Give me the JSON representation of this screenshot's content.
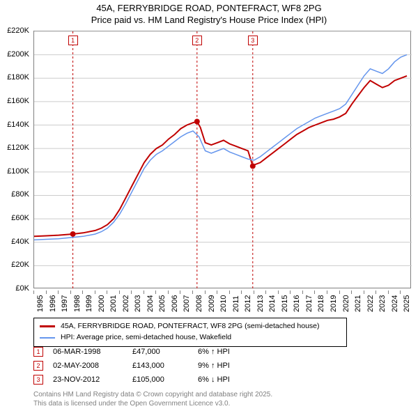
{
  "title_line1": "45A, FERRYBRIDGE ROAD, PONTEFRACT, WF8 2PG",
  "title_line2": "Price paid vs. HM Land Registry's House Price Index (HPI)",
  "chart": {
    "type": "line",
    "background_color": "#ffffff",
    "grid_color": "#cccccc",
    "border_color": "#808080",
    "x_start_year": 1995,
    "x_end_year": 2025.9,
    "y_min": 0,
    "y_max": 220000,
    "y_tick_step": 20000,
    "y_tick_labels": [
      "£0K",
      "£20K",
      "£40K",
      "£60K",
      "£80K",
      "£100K",
      "£120K",
      "£140K",
      "£160K",
      "£180K",
      "£200K",
      "£220K"
    ],
    "x_tick_years": [
      1995,
      1996,
      1997,
      1998,
      1999,
      2000,
      2001,
      2002,
      2003,
      2004,
      2005,
      2006,
      2007,
      2008,
      2009,
      2010,
      2011,
      2012,
      2013,
      2014,
      2015,
      2016,
      2017,
      2018,
      2019,
      2020,
      2021,
      2022,
      2023,
      2024,
      2025
    ],
    "series": [
      {
        "name": "price-paid-series",
        "label": "45A, FERRYBRIDGE ROAD, PONTEFRACT, WF8 2PG (semi-detached house)",
        "color": "#c00000",
        "line_width": 2,
        "points": [
          [
            1995.0,
            45000
          ],
          [
            1996.0,
            45500
          ],
          [
            1997.0,
            46000
          ],
          [
            1998.17,
            47000
          ],
          [
            1999.0,
            48000
          ],
          [
            2000.0,
            50000
          ],
          [
            2000.5,
            52000
          ],
          [
            2001.0,
            55000
          ],
          [
            2001.5,
            60000
          ],
          [
            2002.0,
            68000
          ],
          [
            2002.5,
            78000
          ],
          [
            2003.0,
            88000
          ],
          [
            2003.5,
            98000
          ],
          [
            2004.0,
            108000
          ],
          [
            2004.5,
            115000
          ],
          [
            2005.0,
            120000
          ],
          [
            2005.5,
            123000
          ],
          [
            2006.0,
            128000
          ],
          [
            2006.5,
            132000
          ],
          [
            2007.0,
            137000
          ],
          [
            2007.5,
            140000
          ],
          [
            2008.0,
            142000
          ],
          [
            2008.33,
            143000
          ],
          [
            2008.6,
            138000
          ],
          [
            2009.0,
            125000
          ],
          [
            2009.5,
            123000
          ],
          [
            2010.0,
            125000
          ],
          [
            2010.5,
            127000
          ],
          [
            2011.0,
            124000
          ],
          [
            2011.5,
            122000
          ],
          [
            2012.0,
            120000
          ],
          [
            2012.5,
            118000
          ],
          [
            2012.89,
            105000
          ],
          [
            2013.0,
            106000
          ],
          [
            2013.5,
            108000
          ],
          [
            2014.0,
            112000
          ],
          [
            2014.5,
            116000
          ],
          [
            2015.0,
            120000
          ],
          [
            2015.5,
            124000
          ],
          [
            2016.0,
            128000
          ],
          [
            2016.5,
            132000
          ],
          [
            2017.0,
            135000
          ],
          [
            2017.5,
            138000
          ],
          [
            2018.0,
            140000
          ],
          [
            2018.5,
            142000
          ],
          [
            2019.0,
            144000
          ],
          [
            2019.5,
            145000
          ],
          [
            2020.0,
            147000
          ],
          [
            2020.5,
            150000
          ],
          [
            2021.0,
            158000
          ],
          [
            2021.5,
            165000
          ],
          [
            2022.0,
            172000
          ],
          [
            2022.5,
            178000
          ],
          [
            2023.0,
            175000
          ],
          [
            2023.5,
            172000
          ],
          [
            2024.0,
            174000
          ],
          [
            2024.5,
            178000
          ],
          [
            2025.0,
            180000
          ],
          [
            2025.5,
            182000
          ]
        ]
      },
      {
        "name": "hpi-series",
        "label": "HPI: Average price, semi-detached house, Wakefield",
        "color": "#6495ed",
        "line_width": 1.5,
        "points": [
          [
            1995.0,
            42000
          ],
          [
            1996.0,
            42500
          ],
          [
            1997.0,
            43000
          ],
          [
            1998.0,
            44000
          ],
          [
            1999.0,
            45000
          ],
          [
            2000.0,
            47000
          ],
          [
            2000.5,
            49000
          ],
          [
            2001.0,
            52000
          ],
          [
            2001.5,
            57000
          ],
          [
            2002.0,
            64000
          ],
          [
            2002.5,
            73000
          ],
          [
            2003.0,
            83000
          ],
          [
            2003.5,
            93000
          ],
          [
            2004.0,
            103000
          ],
          [
            2004.5,
            110000
          ],
          [
            2005.0,
            115000
          ],
          [
            2005.5,
            118000
          ],
          [
            2006.0,
            122000
          ],
          [
            2006.5,
            126000
          ],
          [
            2007.0,
            130000
          ],
          [
            2007.5,
            133000
          ],
          [
            2008.0,
            135000
          ],
          [
            2008.5,
            130000
          ],
          [
            2009.0,
            118000
          ],
          [
            2009.5,
            116000
          ],
          [
            2010.0,
            118000
          ],
          [
            2010.5,
            120000
          ],
          [
            2011.0,
            117000
          ],
          [
            2011.5,
            115000
          ],
          [
            2012.0,
            113000
          ],
          [
            2012.5,
            111000
          ],
          [
            2013.0,
            110000
          ],
          [
            2013.5,
            113000
          ],
          [
            2014.0,
            117000
          ],
          [
            2014.5,
            121000
          ],
          [
            2015.0,
            125000
          ],
          [
            2015.5,
            129000
          ],
          [
            2016.0,
            133000
          ],
          [
            2016.5,
            137000
          ],
          [
            2017.0,
            140000
          ],
          [
            2017.5,
            143000
          ],
          [
            2018.0,
            146000
          ],
          [
            2018.5,
            148000
          ],
          [
            2019.0,
            150000
          ],
          [
            2019.5,
            152000
          ],
          [
            2020.0,
            154000
          ],
          [
            2020.5,
            158000
          ],
          [
            2021.0,
            166000
          ],
          [
            2021.5,
            174000
          ],
          [
            2022.0,
            182000
          ],
          [
            2022.5,
            188000
          ],
          [
            2023.0,
            186000
          ],
          [
            2023.5,
            184000
          ],
          [
            2024.0,
            188000
          ],
          [
            2024.5,
            194000
          ],
          [
            2025.0,
            198000
          ],
          [
            2025.5,
            200000
          ]
        ]
      }
    ],
    "sale_markers": [
      {
        "n": "1",
        "year": 1998.17,
        "price": 47000
      },
      {
        "n": "2",
        "year": 2008.33,
        "price": 143000
      },
      {
        "n": "3",
        "year": 2012.89,
        "price": 105000
      }
    ]
  },
  "legend": {
    "items": [
      {
        "color": "#c00000",
        "width": 3,
        "label": "45A, FERRYBRIDGE ROAD, PONTEFRACT, WF8 2PG (semi-detached house)"
      },
      {
        "color": "#6495ed",
        "width": 2,
        "label": "HPI: Average price, semi-detached house, Wakefield"
      }
    ]
  },
  "events": [
    {
      "n": "1",
      "date": "06-MAR-1998",
      "price": "£47,000",
      "delta": "6% ↑ HPI"
    },
    {
      "n": "2",
      "date": "02-MAY-2008",
      "price": "£143,000",
      "delta": "9% ↑ HPI"
    },
    {
      "n": "3",
      "date": "23-NOV-2012",
      "price": "£105,000",
      "delta": "6% ↓ HPI"
    }
  ],
  "footer_line1": "Contains HM Land Registry data © Crown copyright and database right 2025.",
  "footer_line2": "This data is licensed under the Open Government Licence v3.0."
}
